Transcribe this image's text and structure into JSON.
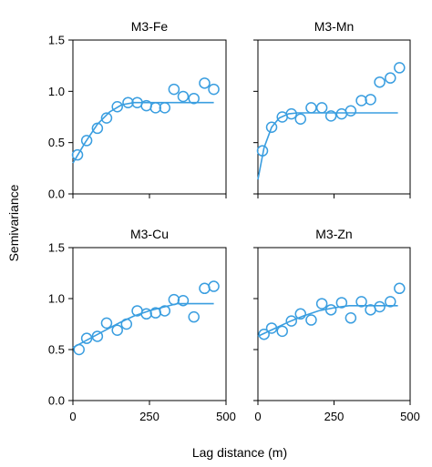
{
  "figure": {
    "xlabel": "Lag distance (m)",
    "ylabel": "Semivariance",
    "series_color": "#3a9ee0"
  },
  "chart_data": [
    {
      "type": "scatter",
      "title": "M3-Fe",
      "xlim": [
        0,
        500
      ],
      "ylim": [
        0,
        1.5
      ],
      "xticks": [
        0,
        250,
        500
      ],
      "yticks": [
        0.0,
        0.5,
        1.0,
        1.5
      ],
      "ytick_labels": [
        "0.0",
        "0.5",
        "1.0",
        "1.5"
      ],
      "xtick_labels": [],
      "points": [
        [
          15,
          0.38
        ],
        [
          45,
          0.52
        ],
        [
          80,
          0.64
        ],
        [
          110,
          0.74
        ],
        [
          145,
          0.85
        ],
        [
          180,
          0.89
        ],
        [
          210,
          0.89
        ],
        [
          240,
          0.86
        ],
        [
          270,
          0.84
        ],
        [
          300,
          0.84
        ],
        [
          330,
          1.02
        ],
        [
          360,
          0.95
        ],
        [
          395,
          0.93
        ],
        [
          430,
          1.08
        ],
        [
          460,
          1.02
        ]
      ],
      "model_curve": [
        [
          0,
          0.3
        ],
        [
          40,
          0.5
        ],
        [
          80,
          0.68
        ],
        [
          120,
          0.8
        ],
        [
          160,
          0.87
        ],
        [
          200,
          0.89
        ],
        [
          460,
          0.89
        ]
      ]
    },
    {
      "type": "scatter",
      "title": "M3-Mn",
      "xlim": [
        0,
        500
      ],
      "ylim": [
        0,
        1.5
      ],
      "xticks": [
        0,
        250,
        500
      ],
      "yticks": [
        0.0,
        0.5,
        1.0,
        1.5
      ],
      "ytick_labels": [],
      "xtick_labels": [],
      "points": [
        [
          15,
          0.42
        ],
        [
          45,
          0.65
        ],
        [
          80,
          0.75
        ],
        [
          110,
          0.78
        ],
        [
          140,
          0.73
        ],
        [
          175,
          0.84
        ],
        [
          210,
          0.84
        ],
        [
          240,
          0.76
        ],
        [
          275,
          0.78
        ],
        [
          305,
          0.81
        ],
        [
          340,
          0.91
        ],
        [
          370,
          0.92
        ],
        [
          400,
          1.09
        ],
        [
          435,
          1.13
        ],
        [
          465,
          1.23
        ]
      ],
      "model_curve": [
        [
          0,
          0.14
        ],
        [
          20,
          0.45
        ],
        [
          45,
          0.65
        ],
        [
          70,
          0.74
        ],
        [
          100,
          0.78
        ],
        [
          130,
          0.79
        ],
        [
          460,
          0.79
        ]
      ]
    },
    {
      "type": "scatter",
      "title": "M3-Cu",
      "xlim": [
        0,
        500
      ],
      "ylim": [
        0,
        1.5
      ],
      "xticks": [
        0,
        250,
        500
      ],
      "yticks": [
        0.0,
        0.5,
        1.0,
        1.5
      ],
      "ytick_labels": [
        "0.0",
        "0.5",
        "1.0",
        "1.5"
      ],
      "xtick_labels": [
        "0",
        "250",
        "500"
      ],
      "points": [
        [
          20,
          0.5
        ],
        [
          45,
          0.61
        ],
        [
          80,
          0.63
        ],
        [
          110,
          0.76
        ],
        [
          145,
          0.69
        ],
        [
          175,
          0.75
        ],
        [
          210,
          0.88
        ],
        [
          240,
          0.85
        ],
        [
          270,
          0.86
        ],
        [
          300,
          0.88
        ],
        [
          330,
          0.99
        ],
        [
          360,
          0.98
        ],
        [
          395,
          0.82
        ],
        [
          430,
          1.1
        ],
        [
          460,
          1.12
        ]
      ],
      "model_curve": [
        [
          0,
          0.52
        ],
        [
          50,
          0.6
        ],
        [
          100,
          0.68
        ],
        [
          150,
          0.76
        ],
        [
          200,
          0.83
        ],
        [
          250,
          0.88
        ],
        [
          300,
          0.92
        ],
        [
          340,
          0.95
        ],
        [
          460,
          0.95
        ]
      ]
    },
    {
      "type": "scatter",
      "title": "M3-Zn",
      "xlim": [
        0,
        500
      ],
      "ylim": [
        0,
        1.5
      ],
      "xticks": [
        0,
        250,
        500
      ],
      "yticks": [
        0.0,
        0.5,
        1.0,
        1.5
      ],
      "ytick_labels": [],
      "xtick_labels": [
        "0",
        "250",
        "500"
      ],
      "points": [
        [
          20,
          0.65
        ],
        [
          45,
          0.71
        ],
        [
          80,
          0.68
        ],
        [
          110,
          0.78
        ],
        [
          140,
          0.85
        ],
        [
          175,
          0.79
        ],
        [
          210,
          0.95
        ],
        [
          240,
          0.89
        ],
        [
          275,
          0.96
        ],
        [
          305,
          0.81
        ],
        [
          340,
          0.97
        ],
        [
          370,
          0.89
        ],
        [
          400,
          0.92
        ],
        [
          435,
          0.97
        ],
        [
          465,
          1.1
        ]
      ],
      "model_curve": [
        [
          0,
          0.63
        ],
        [
          50,
          0.7
        ],
        [
          100,
          0.77
        ],
        [
          150,
          0.83
        ],
        [
          200,
          0.88
        ],
        [
          250,
          0.91
        ],
        [
          300,
          0.93
        ],
        [
          460,
          0.93
        ]
      ]
    }
  ]
}
